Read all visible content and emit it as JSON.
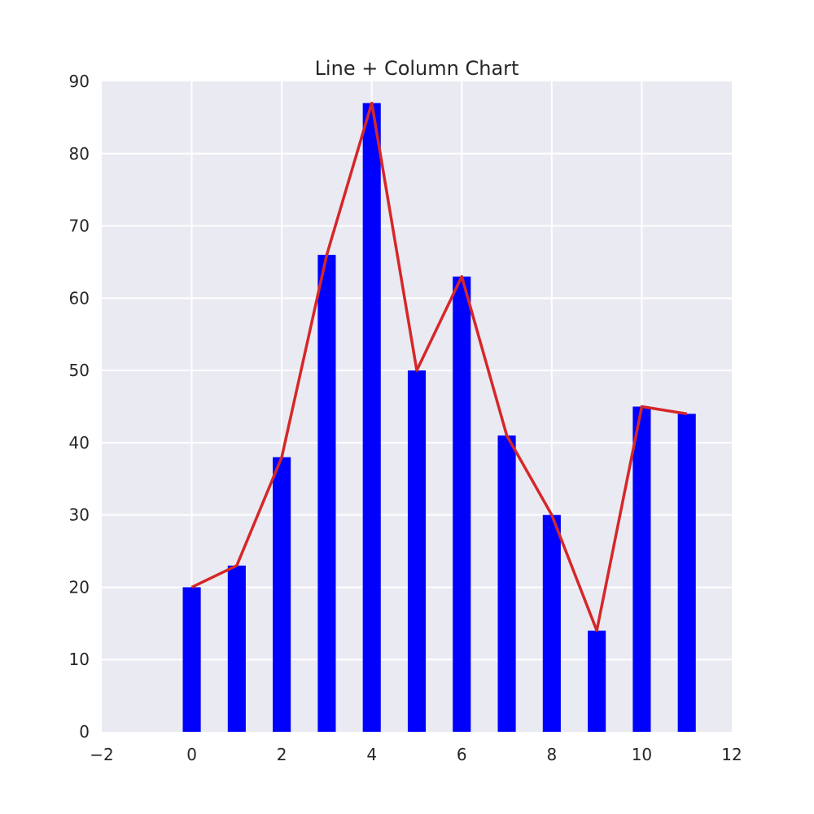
{
  "chart_data": {
    "type": "bar",
    "title": "Line + Column Chart",
    "xlabel": "",
    "ylabel": "",
    "x": [
      0,
      1,
      2,
      3,
      4,
      5,
      6,
      7,
      8,
      9,
      10,
      11
    ],
    "series": [
      {
        "kind": "bar",
        "values": [
          20,
          23,
          38,
          66,
          87,
          50,
          63,
          41,
          30,
          14,
          45,
          44
        ],
        "color": "#0000ff"
      },
      {
        "kind": "line",
        "values": [
          20,
          23,
          38,
          66,
          87,
          50,
          63,
          41,
          30,
          14,
          45,
          44
        ],
        "color": "#d62728"
      }
    ],
    "bar_width": 0.4,
    "xlim": [
      -2,
      12
    ],
    "ylim": [
      0,
      90
    ],
    "xticks": [
      -2,
      0,
      2,
      4,
      6,
      8,
      10,
      12
    ],
    "xtick_labels": [
      "−2",
      "0",
      "2",
      "4",
      "6",
      "8",
      "10",
      "12"
    ],
    "yticks": [
      0,
      10,
      20,
      30,
      40,
      50,
      60,
      70,
      80,
      90
    ],
    "ytick_labels": [
      "0",
      "10",
      "20",
      "30",
      "40",
      "50",
      "60",
      "70",
      "80",
      "90"
    ],
    "grid": true,
    "background": "#eaeaf2",
    "grid_color": "#ffffff"
  }
}
